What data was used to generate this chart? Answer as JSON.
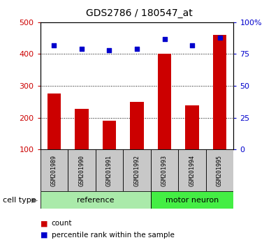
{
  "title": "GDS2786 / 180547_at",
  "categories": [
    "GSM201989",
    "GSM201990",
    "GSM201991",
    "GSM201992",
    "GSM201993",
    "GSM201994",
    "GSM201995"
  ],
  "bar_values": [
    275,
    228,
    190,
    250,
    400,
    238,
    460
  ],
  "scatter_values": [
    82,
    79,
    78,
    79,
    87,
    82,
    88
  ],
  "bar_color": "#cc0000",
  "scatter_color": "#0000cc",
  "ylim_left": [
    100,
    500
  ],
  "ylim_right": [
    0,
    100
  ],
  "yticks_left": [
    100,
    200,
    300,
    400,
    500
  ],
  "yticks_right": [
    0,
    25,
    50,
    75,
    100
  ],
  "yticklabels_right": [
    "0",
    "25",
    "50",
    "75",
    "100%"
  ],
  "group_labels": [
    "reference",
    "motor neuron"
  ],
  "cell_type_label": "cell type",
  "legend_items": [
    "count",
    "percentile rank within the sample"
  ],
  "bar_width": 0.5,
  "plot_bg": "#ffffff",
  "gray_box_color": "#c8c8c8",
  "ref_color": "#aaeaaa",
  "motor_color": "#44ee44",
  "ref_range": [
    0,
    3
  ],
  "motor_range": [
    4,
    6
  ]
}
